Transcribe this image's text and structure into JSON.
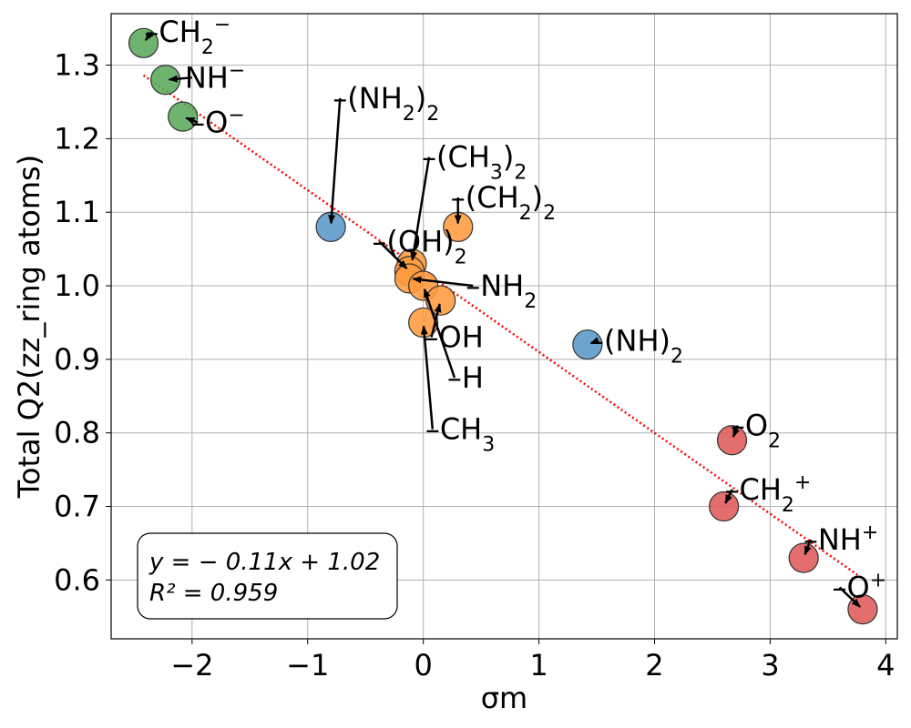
{
  "chart_data": {
    "type": "scatter",
    "xlabel": "σm",
    "ylabel": "Total Q2(zz_ring atoms)",
    "xlim": [
      -2.7,
      4.1
    ],
    "ylim": [
      0.52,
      1.37
    ],
    "xticks": [
      -2,
      -1,
      0,
      1,
      2,
      3,
      4
    ],
    "yticks": [
      0.6,
      0.7,
      0.8,
      0.9,
      1.0,
      1.1,
      1.2,
      1.3
    ],
    "xtick_labels": [
      "−2",
      "−1",
      "0",
      "1",
      "2",
      "3",
      "4"
    ],
    "ytick_labels": [
      "0.6",
      "0.7",
      "0.8",
      "0.9",
      "1.0",
      "1.1",
      "1.2",
      "1.3"
    ],
    "grid": true,
    "colors": {
      "green": "#5aa85a",
      "orange": "#ff9b3f",
      "blue": "#5a98c8",
      "red": "#e05a5a",
      "fit": "#ff0000"
    },
    "points": [
      {
        "x": -2.42,
        "y": 1.33,
        "color": "green",
        "label": "–CH",
        "sub": "2",
        "sup": "−",
        "tx": -2.35,
        "ty": 1.345
      },
      {
        "x": -2.23,
        "y": 1.28,
        "color": "green",
        "label": "NH",
        "sub": "",
        "sup": "−",
        "tx": -2.0,
        "ty": 1.283
      },
      {
        "x": -2.08,
        "y": 1.23,
        "color": "green",
        "label": "–O",
        "sub": "",
        "sup": "−",
        "tx": -1.95,
        "ty": 1.222
      },
      {
        "x": -0.8,
        "y": 1.08,
        "color": "blue",
        "label": "–(NH",
        "sub": "2",
        "sup": "",
        "tail": ")2",
        "tx": -0.72,
        "ty": 1.255
      },
      {
        "x": 0.3,
        "y": 1.08,
        "color": "orange",
        "label": "–(CH",
        "sub": "2",
        "sup": "",
        "tail": ")2",
        "tx": 0.3,
        "ty": 1.12
      },
      {
        "x": -0.1,
        "y": 1.03,
        "color": "orange",
        "label": "–(CH",
        "sub": "3",
        "sup": "",
        "tail": ")2",
        "tx": 0.05,
        "ty": 1.175
      },
      {
        "x": -0.12,
        "y": 1.02,
        "color": "orange",
        "label": "–(OH)",
        "sub": "2",
        "sup": "",
        "tx": -0.38,
        "ty": 1.06
      },
      {
        "x": -0.12,
        "y": 1.01,
        "color": "orange",
        "label": "–NH",
        "sub": "2",
        "sup": "",
        "tx": 0.43,
        "ty": 1.0
      },
      {
        "x": 0.0,
        "y": 1.0,
        "color": "orange",
        "label": "–H",
        "sub": "",
        "sup": "",
        "tx": 0.27,
        "ty": 0.875
      },
      {
        "x": 0.15,
        "y": 0.98,
        "color": "orange",
        "label": "–OH",
        "sub": "",
        "sup": "",
        "tx": 0.07,
        "ty": 0.93
      },
      {
        "x": -0.0,
        "y": 0.95,
        "color": "orange",
        "label": "–CH",
        "sub": "3",
        "sup": "",
        "tx": 0.08,
        "ty": 0.805
      },
      {
        "x": 1.42,
        "y": 0.92,
        "color": "blue",
        "label": "–(NH)",
        "sub": "2",
        "sup": "",
        "tx": 1.5,
        "ty": 0.925
      },
      {
        "x": 2.67,
        "y": 0.79,
        "color": "red",
        "label": "–O",
        "sub": "2",
        "sup": "",
        "tx": 2.72,
        "ty": 0.81
      },
      {
        "x": 2.6,
        "y": 0.7,
        "color": "red",
        "label": "–CH",
        "sub": "2",
        "sup": "+",
        "tx": 2.67,
        "ty": 0.723
      },
      {
        "x": 3.29,
        "y": 0.63,
        "color": "red",
        "label": "–NH",
        "sub": "",
        "sup": "+",
        "tx": 3.35,
        "ty": 0.655
      },
      {
        "x": 3.8,
        "y": 0.56,
        "color": "red",
        "label": "–O",
        "sub": "",
        "sup": "+",
        "tx": 3.6,
        "ty": 0.59
      }
    ],
    "fit": {
      "slope": -0.11,
      "intercept": 1.02,
      "x_range": [
        -2.42,
        3.8
      ]
    },
    "equation": {
      "line1": "y = − 0.11x + 1.02",
      "line2": "R² = 0.959",
      "placement": "bottom-left"
    }
  }
}
